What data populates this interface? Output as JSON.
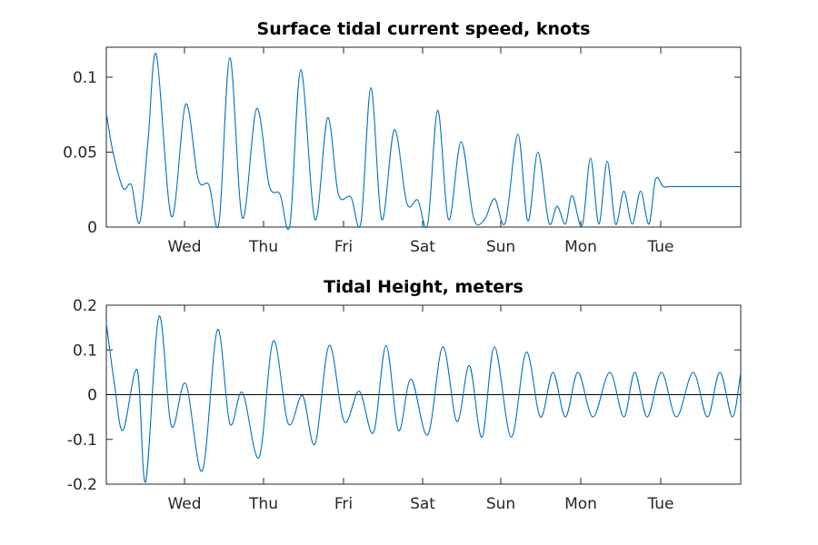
{
  "chart_data": [
    {
      "type": "line",
      "title": "Surface tidal current speed, knots",
      "xlabel": "",
      "ylabel": "",
      "x_ticks": [
        "Wed",
        "Thu",
        "Fri",
        "Sat",
        "Sun",
        "Mon",
        "Tue"
      ],
      "x_range_days": [
        0,
        7.6
      ],
      "ylim": [
        0,
        0.12
      ],
      "y_ticks": [
        0,
        0.05,
        0.1
      ],
      "y_tick_labels": [
        "0",
        "0.05",
        "0.1"
      ],
      "grid": false,
      "series": [
        {
          "color": "#0072bd",
          "x": [
            0.0,
            0.08,
            0.2,
            0.3,
            0.4,
            0.5,
            0.6,
            0.78,
            0.95,
            1.1,
            1.23,
            1.35,
            1.48,
            1.63,
            1.8,
            1.95,
            2.08,
            2.2,
            2.33,
            2.5,
            2.65,
            2.78,
            2.93,
            3.05,
            3.17,
            3.3,
            3.45,
            3.6,
            3.73,
            3.85,
            3.97,
            4.1,
            4.25,
            4.4,
            4.53,
            4.65,
            4.78,
            4.93,
            5.05,
            5.17,
            5.3,
            5.4,
            5.5,
            5.58,
            5.7,
            5.8,
            5.9,
            6.0,
            6.1,
            6.2,
            6.3,
            6.4,
            6.5,
            6.58,
            6.67,
            6.75,
            6.83,
            6.92,
            7.0,
            7.1,
            7.2,
            7.3,
            7.4,
            7.5,
            7.6
          ],
          "values": [
            0.076,
            0.05,
            0.026,
            0.028,
            0.003,
            0.058,
            0.115,
            0.007,
            0.082,
            0.032,
            0.028,
            0.003,
            0.113,
            0.006,
            0.079,
            0.028,
            0.022,
            0.002,
            0.105,
            0.005,
            0.073,
            0.022,
            0.02,
            0.003,
            0.093,
            0.005,
            0.065,
            0.016,
            0.018,
            0.002,
            0.078,
            0.005,
            0.057,
            0.006,
            0.005,
            0.019,
            0.003,
            0.062,
            0.004,
            0.05,
            0.003,
            0.014,
            0.002,
            0.021,
            0.001,
            0.046,
            0.002,
            0.044,
            0.002,
            0.024,
            0.002,
            0.024,
            0.002,
            0.032,
            0.027,
            0.027,
            0.027,
            0.027,
            0.027,
            0.027,
            0.027,
            0.027,
            0.027,
            0.027,
            0.027
          ]
        }
      ]
    },
    {
      "type": "line",
      "title": "Tidal Height, meters",
      "xlabel": "",
      "ylabel": "",
      "x_ticks": [
        "Wed",
        "Thu",
        "Fri",
        "Sat",
        "Sun",
        "Mon",
        "Tue"
      ],
      "x_range_days": [
        0,
        7.6
      ],
      "ylim": [
        -0.2,
        0.2
      ],
      "y_ticks": [
        -0.2,
        -0.1,
        0,
        0.1,
        0.2
      ],
      "y_tick_labels": [
        "-0.2",
        "-0.1",
        "0",
        "0.1",
        "0.2"
      ],
      "zero_line": true,
      "grid": false,
      "series": [
        {
          "color": "#0072bd",
          "x": [
            0.0,
            0.1,
            0.2,
            0.37,
            0.47,
            0.63,
            0.78,
            0.95,
            1.15,
            1.33,
            1.48,
            1.63,
            1.83,
            2.0,
            2.18,
            2.35,
            2.5,
            2.67,
            2.85,
            3.03,
            3.2,
            3.35,
            3.5,
            3.65,
            3.85,
            4.03,
            4.2,
            4.35,
            4.5,
            4.65,
            4.85,
            5.03,
            5.2,
            5.35,
            5.5,
            5.65,
            5.83,
            6.03,
            6.2,
            6.33,
            6.48,
            6.65,
            6.83,
            7.03,
            7.2,
            7.35,
            7.5,
            7.6
          ],
          "values": [
            0.16,
            0.02,
            -0.08,
            0.055,
            -0.195,
            0.175,
            -0.07,
            0.025,
            -0.17,
            0.145,
            -0.065,
            0.005,
            -0.14,
            0.12,
            -0.065,
            -0.002,
            -0.11,
            0.11,
            -0.06,
            0.008,
            -0.085,
            0.11,
            -0.08,
            0.035,
            -0.09,
            0.107,
            -0.06,
            0.065,
            -0.095,
            0.107,
            -0.095,
            0.095,
            -0.05,
            0.05,
            -0.05,
            0.05,
            -0.05,
            0.05,
            -0.05,
            0.05,
            -0.05,
            0.05,
            -0.05,
            0.05,
            -0.05,
            0.05,
            -0.05,
            0.05
          ]
        }
      ]
    }
  ]
}
